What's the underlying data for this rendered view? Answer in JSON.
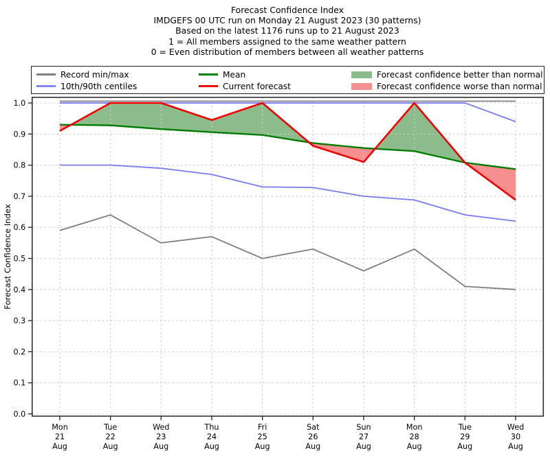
{
  "titles": [
    "Forecast Confidence Index",
    "IMDGEFS 00 UTC run on Monday 21 August 2023 (30 patterns)",
    "Based on the latest 1176 runs up to 21 August 2023",
    "1 = All members assigned to the same weather pattern",
    "0 = Even distribution of members between all weather patterns"
  ],
  "legend": {
    "items": [
      {
        "label": "Record min/max",
        "type": "line",
        "color": "#7f7f7f"
      },
      {
        "label": "10th/90th centiles",
        "type": "line",
        "color": "#8585f0"
      },
      {
        "label": "Mean",
        "type": "line",
        "color": "#007c00"
      },
      {
        "label": "Current forecast",
        "type": "line",
        "color": "#f40000"
      },
      {
        "label": "Forecast confidence better than normal",
        "type": "patch",
        "color": "#8cbc8c"
      },
      {
        "label": "Forecast confidence worse than normal",
        "type": "patch",
        "color": "#f68f8f"
      }
    ]
  },
  "chart_data": {
    "type": "line",
    "title": "Forecast Confidence Index",
    "ylabel": "Forecast Confidence Index",
    "ylim": [
      0.0,
      1.02
    ],
    "yticks": [
      0.0,
      0.1,
      0.2,
      0.3,
      0.4,
      0.5,
      0.6,
      0.7,
      0.8,
      0.9,
      1.0
    ],
    "grid": "dashed both axes",
    "x_categories": [
      [
        "Mon",
        "21",
        "Aug"
      ],
      [
        "Tue",
        "22",
        "Aug"
      ],
      [
        "Wed",
        "23",
        "Aug"
      ],
      [
        "Thu",
        "24",
        "Aug"
      ],
      [
        "Fri",
        "25",
        "Aug"
      ],
      [
        "Sat",
        "26",
        "Aug"
      ],
      [
        "Sun",
        "27",
        "Aug"
      ],
      [
        "Mon",
        "28",
        "Aug"
      ],
      [
        "Tue",
        "29",
        "Aug"
      ],
      [
        "Wed",
        "30",
        "Aug"
      ]
    ],
    "series": [
      {
        "name": "Record max",
        "color": "#7f7f7f",
        "width": 1.8,
        "values": [
          1.0,
          1.0,
          1.0,
          1.0,
          1.0,
          1.0,
          1.0,
          1.0,
          1.0,
          1.0
        ]
      },
      {
        "name": "90th centile",
        "color": "#8080ee",
        "width": 1.9,
        "values": [
          1.0,
          1.0,
          1.0,
          1.0,
          1.0,
          1.0,
          1.0,
          1.0,
          1.0,
          0.94
        ]
      },
      {
        "name": "10th centile",
        "color": "#8080ee",
        "width": 1.9,
        "values": [
          0.8,
          0.8,
          0.79,
          0.77,
          0.73,
          0.728,
          0.7,
          0.688,
          0.64,
          0.62
        ]
      },
      {
        "name": "Record min",
        "color": "#7f7f7f",
        "width": 1.8,
        "values": [
          0.59,
          0.64,
          0.55,
          0.57,
          0.5,
          0.53,
          0.46,
          0.53,
          0.41,
          0.4
        ]
      },
      {
        "name": "Mean",
        "color": "#007c00",
        "width": 2.4,
        "values": [
          0.93,
          0.928,
          0.916,
          0.906,
          0.897,
          0.871,
          0.855,
          0.845,
          0.808,
          0.787
        ]
      },
      {
        "name": "Current forecast",
        "color": "#f40000",
        "width": 2.6,
        "values": [
          0.91,
          1.0,
          1.0,
          0.945,
          1.0,
          0.862,
          0.81,
          1.0,
          0.808,
          0.688
        ]
      }
    ],
    "fills": {
      "between": [
        "Current forecast",
        "Mean"
      ],
      "better_than_normal_color": "#8cbc8c",
      "worse_than_normal_color": "#f68f8f"
    },
    "legend_position": "upper area, 3 columns, framed"
  }
}
